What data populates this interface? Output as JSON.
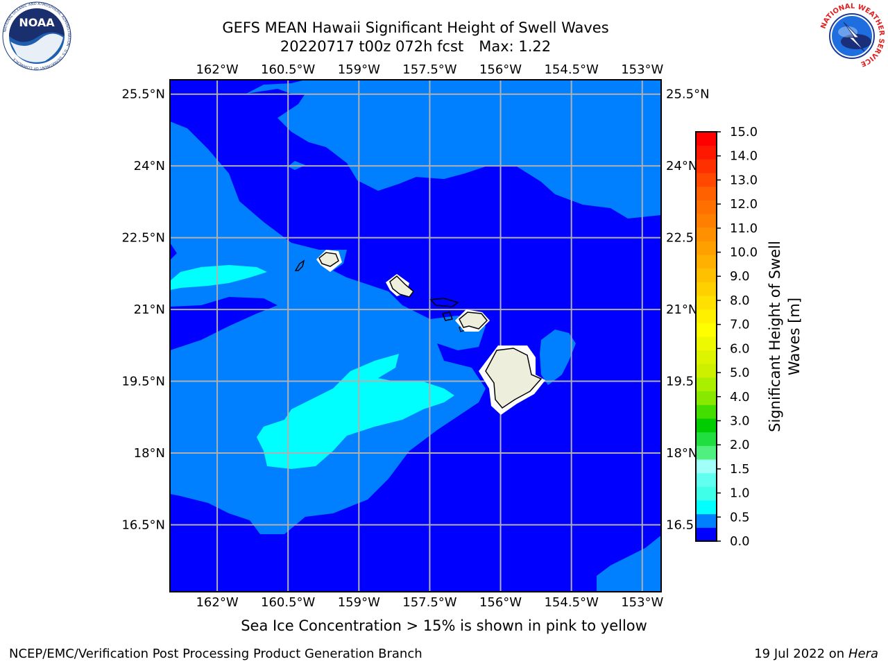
{
  "title": {
    "line1": "GEFS MEAN Hawaii Significant Height of Swell Waves",
    "run": "20220717 t00z 072h fcst",
    "max": "Max: 1.22"
  },
  "map": {
    "lon_ticks": [
      "162°W",
      "160.5°W",
      "159°W",
      "157.5°W",
      "156°W",
      "154.5°W",
      "153°W"
    ],
    "lat_ticks": [
      "25.5°N",
      "24°N",
      "22.5°N",
      "21°N",
      "19.5°N",
      "18°N",
      "16.5°N"
    ],
    "lat_ticks_right": [
      "25.5°N",
      "24°N",
      "22.5",
      "21°N",
      "19.5",
      "18°N",
      "16.5"
    ],
    "lon_range": [
      -163,
      -152.6
    ],
    "lat_range": [
      15.1,
      25.8
    ],
    "grid": true,
    "colors": {
      "level_0_0.5": "#0000ff",
      "level_0.5_1.0": "#0080ff",
      "level_1.0_1.5": "#00ffff",
      "land": "#eeeedd",
      "grid": "#b0b0b0"
    }
  },
  "colorbar": {
    "label_line1": "Significant Height of Swell",
    "label_line2": "Waves [m]",
    "ticks": [
      "15.0",
      "14.0",
      "13.0",
      "12.0",
      "11.0",
      "10.0",
      "9.0",
      "8.0",
      "7.0",
      "6.0",
      "5.0",
      "4.0",
      "3.0",
      "2.0",
      "1.5",
      "1.0",
      "0.5",
      "0.0"
    ],
    "levels": [
      0.0,
      0.5,
      1.0,
      1.5,
      2.0,
      2.5,
      3.0,
      3.5,
      4.0,
      4.5,
      5.0,
      5.5,
      6.0,
      6.5,
      7.0,
      7.5,
      8.0,
      8.5,
      9.0,
      9.5,
      10.0,
      10.5,
      11.0,
      11.5,
      12.0,
      12.5,
      13.0,
      13.5,
      14.0,
      14.5,
      15.0
    ],
    "colors": [
      "#0000ff",
      "#0080ff",
      "#00ffff",
      "#40ffe8",
      "#60fff0",
      "#a0fff8",
      "#50f080",
      "#20dd40",
      "#00cc00",
      "#44dd00",
      "#88e800",
      "#aaee00",
      "#ccf000",
      "#ddf400",
      "#eef800",
      "#ffff00",
      "#fff000",
      "#ffe000",
      "#ffd000",
      "#ffc000",
      "#ffb000",
      "#ffa000",
      "#ff9000",
      "#ff8000",
      "#ff7000",
      "#ff6000",
      "#ff4800",
      "#ff3000",
      "#ff1800",
      "#ff0000"
    ]
  },
  "ice_note": "Sea Ice Concentration > 15% is shown in pink to yellow",
  "footer": {
    "left": "NCEP/EMC/Verification Post Processing Product Generation Branch",
    "right_prefix": "19 Jul 2022 on ",
    "right_machine": "Hera"
  },
  "logos": {
    "noaa": "NOAA",
    "noaa_ring": "NATIONAL OCEANIC AND ATMOSPHERIC ADMINISTRATION · U.S. DEPARTMENT OF COMMERCE",
    "nws_ring": "NATIONAL WEATHER SERVICE"
  }
}
